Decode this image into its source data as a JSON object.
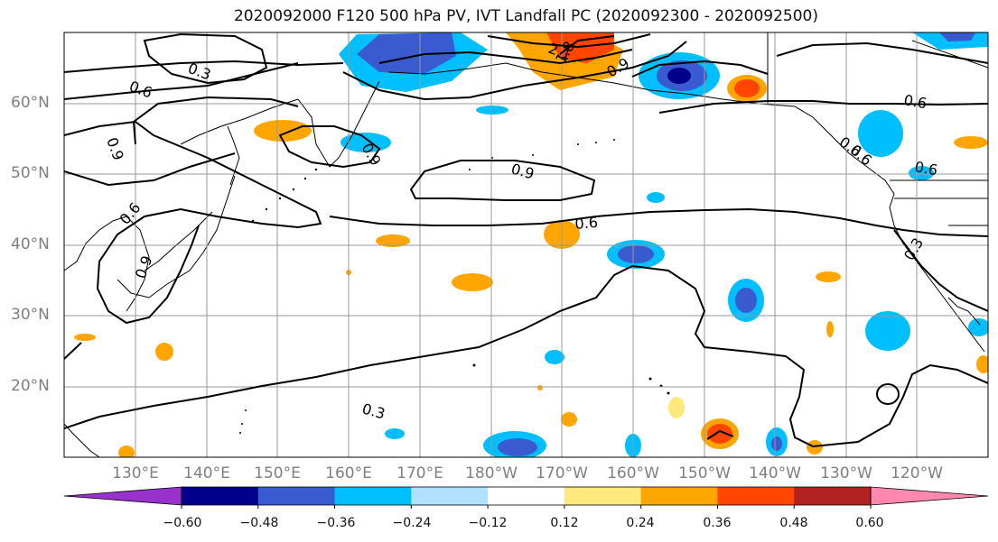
{
  "title": "2020092000 F120 500 hPa PV, IVT Landfall PC (2020092300 - 2020092500)",
  "axes": {
    "lat_ticks": [
      "60°N",
      "50°N",
      "40°N",
      "30°N",
      "20°N"
    ],
    "lon_ticks": [
      "130°E",
      "140°E",
      "150°E",
      "160°E",
      "170°E",
      "180°W",
      "170°W",
      "160°W",
      "150°W",
      "140°W",
      "130°W",
      "120°W"
    ]
  },
  "colorbar": {
    "colors": [
      "#9932cc",
      "#00008b",
      "#3a5bd0",
      "#00bfff",
      "#b0e2ff",
      "#ffffff",
      "#ffe87c",
      "#ffa500",
      "#ff4500",
      "#b22222",
      "#ff88b0"
    ],
    "tick_labels": [
      "−0.60",
      "−0.48",
      "−0.36",
      "−0.24",
      "−0.12",
      "0.12",
      "0.24",
      "0.36",
      "0.48",
      "0.60"
    ]
  },
  "contour_labels": [
    "0.3",
    "0.6",
    "0.9",
    "0.9",
    "0.6",
    "0.9",
    "0.6",
    "0.9",
    "0.6",
    "2.1",
    "1.8",
    "0.9",
    "0.6",
    "0.6",
    "0.3",
    "0.3",
    "0.6"
  ]
}
